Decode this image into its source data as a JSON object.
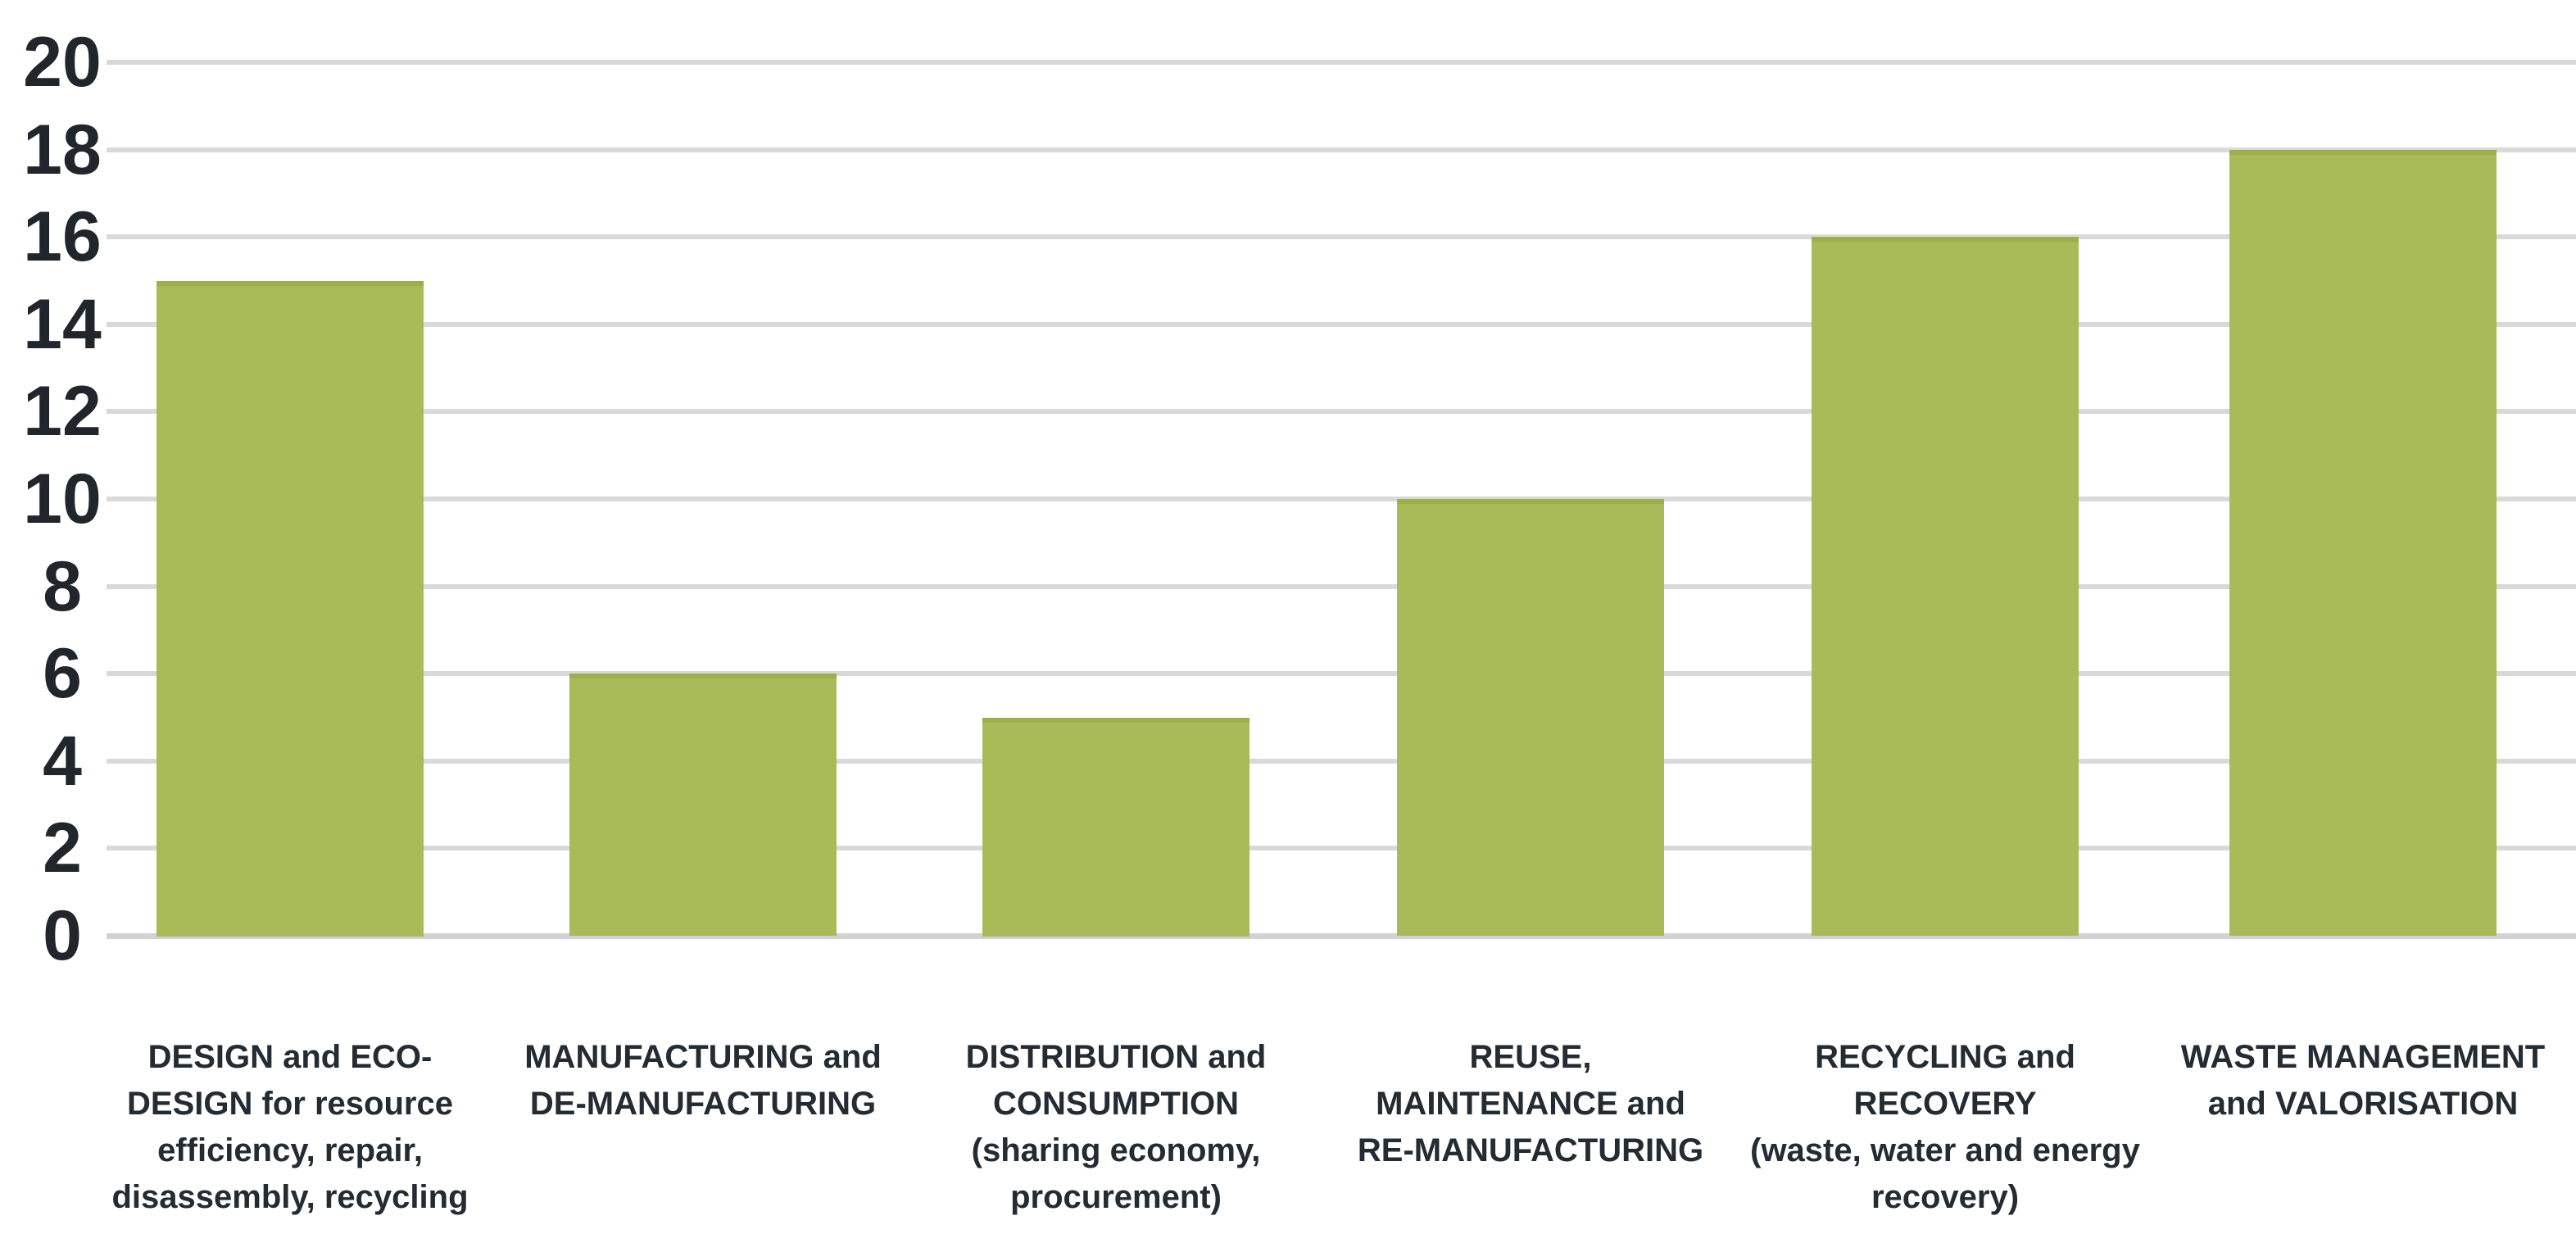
{
  "chart_data": {
    "type": "bar",
    "title": "",
    "xlabel": "",
    "ylabel": "",
    "categories": [
      "DESIGN and ECO-DESIGN for resource efficiency, repair, disassembly, recycling",
      "MANUFACTURING and DE-MANUFACTURING",
      "DISTRIBUTION and CONSUMPTION (sharing economy, procurement)",
      "REUSE, MAINTENANCE and RE-MANUFACTURING",
      "RECYCLING and RECOVERY (waste, water and energy recovery)",
      "WASTE MANAGEMENT and VALORISATION"
    ],
    "categories_lines": [
      [
        "DESIGN and ECO-",
        "DESIGN for resource",
        "efficiency, repair,",
        "disassembly, recycling"
      ],
      [
        "MANUFACTURING and",
        "DE-MANUFACTURING"
      ],
      [
        "DISTRIBUTION and",
        "CONSUMPTION",
        "(sharing economy,",
        "procurement)"
      ],
      [
        "REUSE,",
        "MAINTENANCE and",
        "RE-MANUFACTURING"
      ],
      [
        "RECYCLING and",
        "RECOVERY",
        "(waste, water and energy",
        "recovery)"
      ],
      [
        "WASTE MANAGEMENT",
        "and VALORISATION"
      ]
    ],
    "values": [
      15,
      6,
      5,
      10,
      16,
      18
    ],
    "ylim": [
      0,
      20
    ],
    "yticks": [
      0,
      2,
      4,
      6,
      8,
      10,
      12,
      14,
      16,
      18,
      20
    ],
    "grid": true,
    "legend": false,
    "bar_color": "#a9ba58",
    "gridline_color": "#d9d9d9",
    "text_color": "#20262c"
  }
}
